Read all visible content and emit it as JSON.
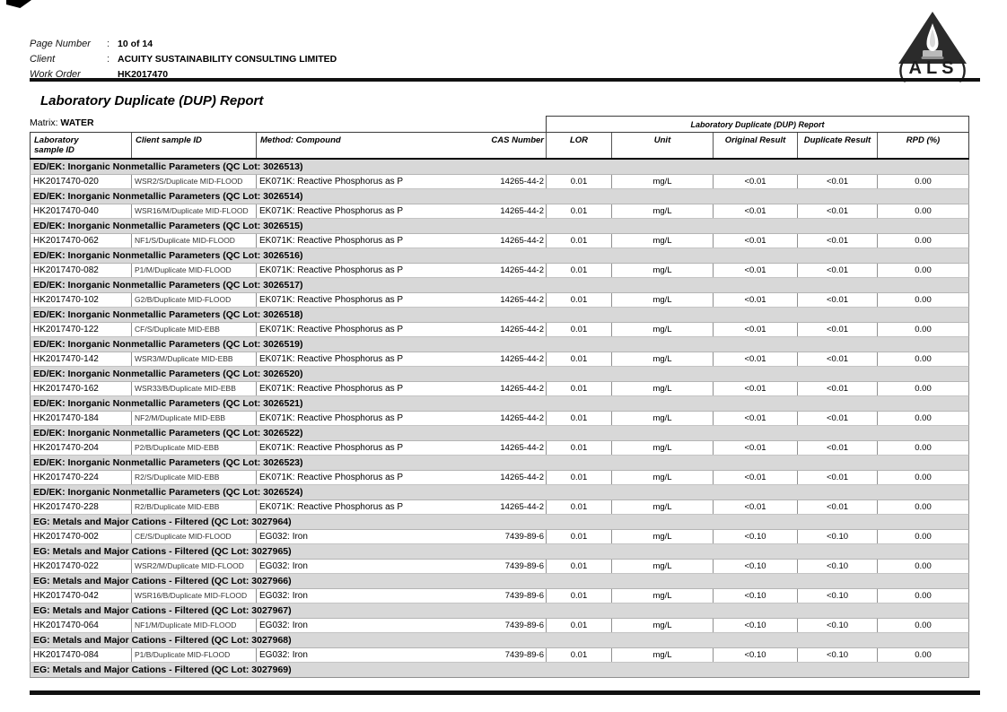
{
  "header": {
    "fields": [
      {
        "label": "Page Number",
        "sep": ":",
        "value": "10 of 14"
      },
      {
        "label": "Client",
        "sep": ":",
        "value": "ACUITY SUSTAINABILITY CONSULTING LIMITED"
      },
      {
        "label": "Work Order",
        "sep": "",
        "value": "HK2017470"
      }
    ],
    "logo_text": "ALS"
  },
  "title": "Laboratory Duplicate (DUP) Report",
  "matrix": {
    "label": "Matrix:",
    "value": "WATER"
  },
  "table": {
    "span_header": "Laboratory Duplicate (DUP) Report",
    "columns": {
      "lab_id_line1": "Laboratory",
      "lab_id_line2": "sample ID",
      "client_id": "Client sample ID",
      "method": "Method: Compound",
      "cas": "CAS Number",
      "lor": "LOR",
      "unit": "Unit",
      "original": "Original Result",
      "duplicate": "Duplicate Result",
      "rpd": "RPD (%)"
    },
    "sections": [
      {
        "header": "ED/EK: Inorganic Nonmetallic Parameters  (QC Lot: 3026513)",
        "row": {
          "lab_id": "HK2017470-020",
          "client_id": "WSR2/S/Duplicate MID-FLOOD",
          "method": "EK071K: Reactive Phosphorus as P",
          "cas": "14265-44-2",
          "lor": "0.01",
          "unit": "mg/L",
          "original": "<0.01",
          "duplicate": "<0.01",
          "rpd": "0.00"
        }
      },
      {
        "header": "ED/EK: Inorganic Nonmetallic Parameters  (QC Lot: 3026514)",
        "row": {
          "lab_id": "HK2017470-040",
          "client_id": "WSR16/M/Duplicate MID-FLOOD",
          "method": "EK071K: Reactive Phosphorus as P",
          "cas": "14265-44-2",
          "lor": "0.01",
          "unit": "mg/L",
          "original": "<0.01",
          "duplicate": "<0.01",
          "rpd": "0.00"
        }
      },
      {
        "header": "ED/EK: Inorganic Nonmetallic Parameters  (QC Lot: 3026515)",
        "row": {
          "lab_id": "HK2017470-062",
          "client_id": "NF1/S/Duplicate MID-FLOOD",
          "method": "EK071K: Reactive Phosphorus as P",
          "cas": "14265-44-2",
          "lor": "0.01",
          "unit": "mg/L",
          "original": "<0.01",
          "duplicate": "<0.01",
          "rpd": "0.00"
        }
      },
      {
        "header": "ED/EK: Inorganic Nonmetallic Parameters  (QC Lot: 3026516)",
        "row": {
          "lab_id": "HK2017470-082",
          "client_id": "P1/M/Duplicate MID-FLOOD",
          "method": "EK071K: Reactive Phosphorus as P",
          "cas": "14265-44-2",
          "lor": "0.01",
          "unit": "mg/L",
          "original": "<0.01",
          "duplicate": "<0.01",
          "rpd": "0.00"
        }
      },
      {
        "header": "ED/EK: Inorganic Nonmetallic Parameters  (QC Lot: 3026517)",
        "row": {
          "lab_id": "HK2017470-102",
          "client_id": "G2/B/Duplicate MID-FLOOD",
          "method": "EK071K: Reactive Phosphorus as P",
          "cas": "14265-44-2",
          "lor": "0.01",
          "unit": "mg/L",
          "original": "<0.01",
          "duplicate": "<0.01",
          "rpd": "0.00"
        }
      },
      {
        "header": "ED/EK: Inorganic Nonmetallic Parameters  (QC Lot: 3026518)",
        "row": {
          "lab_id": "HK2017470-122",
          "client_id": "CF/S/Duplicate MID-EBB",
          "method": "EK071K: Reactive Phosphorus as P",
          "cas": "14265-44-2",
          "lor": "0.01",
          "unit": "mg/L",
          "original": "<0.01",
          "duplicate": "<0.01",
          "rpd": "0.00"
        }
      },
      {
        "header": "ED/EK: Inorganic Nonmetallic Parameters  (QC Lot: 3026519)",
        "row": {
          "lab_id": "HK2017470-142",
          "client_id": "WSR3/M/Duplicate MID-EBB",
          "method": "EK071K: Reactive Phosphorus as P",
          "cas": "14265-44-2",
          "lor": "0.01",
          "unit": "mg/L",
          "original": "<0.01",
          "duplicate": "<0.01",
          "rpd": "0.00"
        }
      },
      {
        "header": "ED/EK: Inorganic Nonmetallic Parameters  (QC Lot: 3026520)",
        "row": {
          "lab_id": "HK2017470-162",
          "client_id": "WSR33/B/Duplicate MID-EBB",
          "method": "EK071K: Reactive Phosphorus as P",
          "cas": "14265-44-2",
          "lor": "0.01",
          "unit": "mg/L",
          "original": "<0.01",
          "duplicate": "<0.01",
          "rpd": "0.00"
        }
      },
      {
        "header": "ED/EK: Inorganic Nonmetallic Parameters  (QC Lot: 3026521)",
        "row": {
          "lab_id": "HK2017470-184",
          "client_id": "NF2/M/Duplicate MID-EBB",
          "method": "EK071K: Reactive Phosphorus as P",
          "cas": "14265-44-2",
          "lor": "0.01",
          "unit": "mg/L",
          "original": "<0.01",
          "duplicate": "<0.01",
          "rpd": "0.00"
        }
      },
      {
        "header": "ED/EK: Inorganic Nonmetallic Parameters  (QC Lot: 3026522)",
        "row": {
          "lab_id": "HK2017470-204",
          "client_id": "P2/B/Duplicate MID-EBB",
          "method": "EK071K: Reactive Phosphorus as P",
          "cas": "14265-44-2",
          "lor": "0.01",
          "unit": "mg/L",
          "original": "<0.01",
          "duplicate": "<0.01",
          "rpd": "0.00"
        }
      },
      {
        "header": "ED/EK: Inorganic Nonmetallic Parameters  (QC Lot: 3026523)",
        "row": {
          "lab_id": "HK2017470-224",
          "client_id": "R2/S/Duplicate MID-EBB",
          "method": "EK071K: Reactive Phosphorus as P",
          "cas": "14265-44-2",
          "lor": "0.01",
          "unit": "mg/L",
          "original": "<0.01",
          "duplicate": "<0.01",
          "rpd": "0.00"
        }
      },
      {
        "header": "ED/EK: Inorganic Nonmetallic Parameters  (QC Lot: 3026524)",
        "row": {
          "lab_id": "HK2017470-228",
          "client_id": "R2/B/Duplicate MID-EBB",
          "method": "EK071K: Reactive Phosphorus as P",
          "cas": "14265-44-2",
          "lor": "0.01",
          "unit": "mg/L",
          "original": "<0.01",
          "duplicate": "<0.01",
          "rpd": "0.00"
        }
      },
      {
        "header": "EG: Metals and Major Cations - Filtered  (QC Lot: 3027964)",
        "row": {
          "lab_id": "HK2017470-002",
          "client_id": "CE/S/Duplicate MID-FLOOD",
          "method": "EG032: Iron",
          "cas": "7439-89-6",
          "lor": "0.01",
          "unit": "mg/L",
          "original": "<0.10",
          "duplicate": "<0.10",
          "rpd": "0.00"
        }
      },
      {
        "header": "EG: Metals and Major Cations - Filtered  (QC Lot: 3027965)",
        "row": {
          "lab_id": "HK2017470-022",
          "client_id": "WSR2/M/Duplicate MID-FLOOD",
          "method": "EG032: Iron",
          "cas": "7439-89-6",
          "lor": "0.01",
          "unit": "mg/L",
          "original": "<0.10",
          "duplicate": "<0.10",
          "rpd": "0.00"
        }
      },
      {
        "header": "EG: Metals and Major Cations - Filtered  (QC Lot: 3027966)",
        "row": {
          "lab_id": "HK2017470-042",
          "client_id": "WSR16/B/Duplicate MID-FLOOD",
          "method": "EG032: Iron",
          "cas": "7439-89-6",
          "lor": "0.01",
          "unit": "mg/L",
          "original": "<0.10",
          "duplicate": "<0.10",
          "rpd": "0.00"
        }
      },
      {
        "header": "EG: Metals and Major Cations - Filtered  (QC Lot: 3027967)",
        "row": {
          "lab_id": "HK2017470-064",
          "client_id": "NF1/M/Duplicate MID-FLOOD",
          "method": "EG032: Iron",
          "cas": "7439-89-6",
          "lor": "0.01",
          "unit": "mg/L",
          "original": "<0.10",
          "duplicate": "<0.10",
          "rpd": "0.00"
        }
      },
      {
        "header": "EG: Metals and Major Cations - Filtered  (QC Lot: 3027968)",
        "row": {
          "lab_id": "HK2017470-084",
          "client_id": "P1/B/Duplicate MID-FLOOD",
          "method": "EG032: Iron",
          "cas": "7439-89-6",
          "lor": "0.01",
          "unit": "mg/L",
          "original": "<0.10",
          "duplicate": "<0.10",
          "rpd": "0.00"
        }
      },
      {
        "header": "EG: Metals and Major Cations - Filtered  (QC Lot: 3027969)",
        "row": null
      }
    ]
  },
  "colors": {
    "band": "#d8d8d8",
    "rule": "#111111",
    "logo_dark": "#2b2b2b"
  }
}
